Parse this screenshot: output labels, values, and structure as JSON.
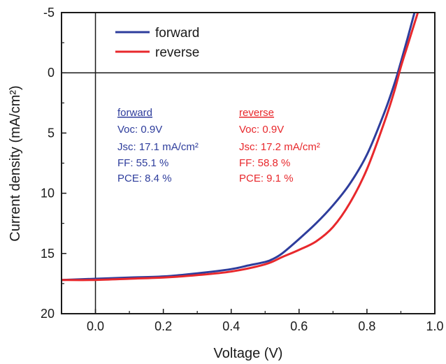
{
  "chart_data": {
    "type": "line",
    "xlabel": "Voltage (V)",
    "ylabel": "Current density (mA/cm²)",
    "xlim": [
      -0.1,
      1.0
    ],
    "ylim": [
      20,
      -5
    ],
    "y_inverted": true,
    "x_ticks": [
      "0.0",
      "0.2",
      "0.4",
      "0.6",
      "0.8",
      "1.0"
    ],
    "y_ticks": [
      "-5",
      "0",
      "5",
      "10",
      "15",
      "20"
    ],
    "grid": false,
    "legend_position": "top-left",
    "series": [
      {
        "name": "forward",
        "color": "#2e3d9c",
        "x": [
          -0.1,
          0.0,
          0.1,
          0.2,
          0.3,
          0.4,
          0.45,
          0.5,
          0.52,
          0.55,
          0.6,
          0.65,
          0.7,
          0.75,
          0.8,
          0.85,
          0.88,
          0.9,
          0.92,
          0.94
        ],
        "y": [
          17.2,
          17.1,
          17.0,
          16.9,
          16.65,
          16.3,
          16.0,
          15.7,
          15.5,
          15.0,
          13.8,
          12.5,
          11.0,
          9.2,
          6.8,
          3.4,
          1.0,
          -0.9,
          -2.9,
          -5.0
        ]
      },
      {
        "name": "reverse",
        "color": "#e8282c",
        "x": [
          -0.1,
          0.0,
          0.1,
          0.2,
          0.3,
          0.4,
          0.5,
          0.55,
          0.6,
          0.65,
          0.7,
          0.75,
          0.8,
          0.85,
          0.88,
          0.9,
          0.92,
          0.95
        ],
        "y": [
          17.2,
          17.2,
          17.1,
          17.0,
          16.8,
          16.5,
          15.9,
          15.3,
          14.7,
          14.0,
          12.8,
          10.8,
          8.0,
          4.2,
          1.6,
          -0.5,
          -2.3,
          -5.0
        ]
      }
    ],
    "annotations": [
      {
        "color": "#2e3d9c",
        "lines": [
          "forward",
          "Voc: 0.9V",
          "Jsc: 17.1 mA/cm²",
          "FF: 55.1 %",
          "PCE: 8.4 %"
        ]
      },
      {
        "color": "#e8282c",
        "lines": [
          "reverse",
          "Voc: 0.9V",
          "Jsc: 17.2 mA/cm²",
          "FF: 58.8 %",
          "PCE: 9.1 %"
        ]
      }
    ]
  }
}
